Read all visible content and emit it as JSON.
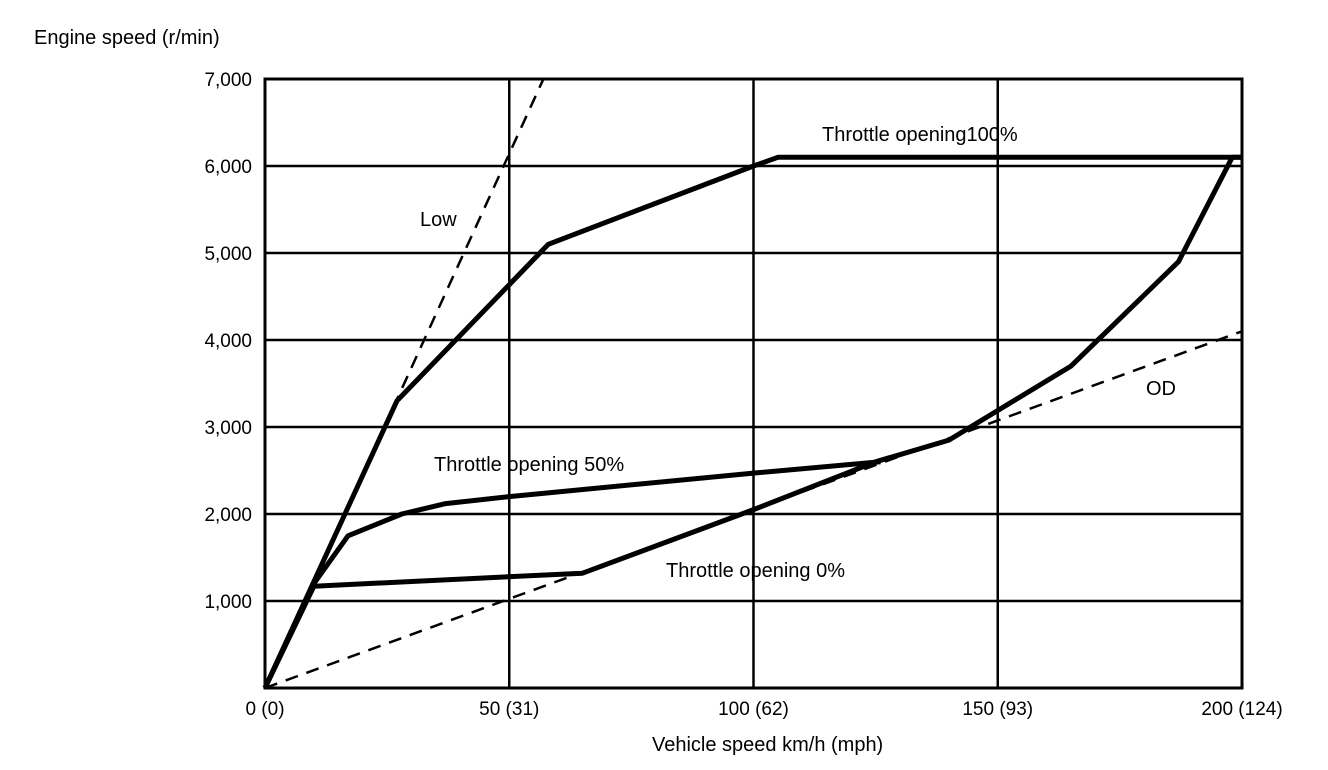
{
  "chart_data": {
    "type": "line",
    "title": "",
    "ylabel": "Engine speed (r/min)",
    "xlabel": "Vehicle speed  km/h (mph)",
    "xlim": [
      0,
      200
    ],
    "ylim": [
      0,
      7000
    ],
    "grid": true,
    "x_ticks": [
      {
        "value": 0,
        "label": "0 (0)"
      },
      {
        "value": 50,
        "label": "50 (31)"
      },
      {
        "value": 100,
        "label": "100 (62)"
      },
      {
        "value": 150,
        "label": "150 (93)"
      },
      {
        "value": 200,
        "label": "200 (124)"
      }
    ],
    "y_ticks": [
      {
        "value": 1000,
        "label": "1,000"
      },
      {
        "value": 2000,
        "label": "2,000"
      },
      {
        "value": 3000,
        "label": "3,000"
      },
      {
        "value": 4000,
        "label": "4,000"
      },
      {
        "value": 5000,
        "label": "5,000"
      },
      {
        "value": 6000,
        "label": "6,000"
      },
      {
        "value": 7000,
        "label": "7,000"
      }
    ],
    "series": [
      {
        "name": "Throttle opening100%",
        "style": "solid",
        "x": [
          0,
          27,
          58,
          100,
          105,
          200
        ],
        "y": [
          0,
          3300,
          5100,
          6000,
          6100,
          6100
        ]
      },
      {
        "name": "Throttle opening 50%",
        "style": "solid",
        "x": [
          0,
          10,
          17,
          28,
          37,
          50,
          100,
          126
        ],
        "y": [
          0,
          1200,
          1750,
          2000,
          2120,
          2200,
          2470,
          2600
        ]
      },
      {
        "name": "Throttle opening 0%",
        "style": "solid",
        "x": [
          0,
          10,
          65,
          100,
          125,
          140,
          165,
          187,
          198,
          200
        ],
        "y": [
          0,
          1170,
          1320,
          2050,
          2600,
          2850,
          3700,
          4900,
          6100,
          6100
        ]
      },
      {
        "name": "Low",
        "style": "dashed",
        "x": [
          0,
          57
        ],
        "y": [
          0,
          7000
        ]
      },
      {
        "name": "OD",
        "style": "dashed",
        "x": [
          0,
          200
        ],
        "y": [
          0,
          4100
        ]
      }
    ],
    "annotations": {
      "throttle_100": "Throttle opening100%",
      "throttle_50": "Throttle opening 50%",
      "throttle_0": "Throttle opening 0%",
      "low": "Low",
      "od": "OD"
    }
  }
}
